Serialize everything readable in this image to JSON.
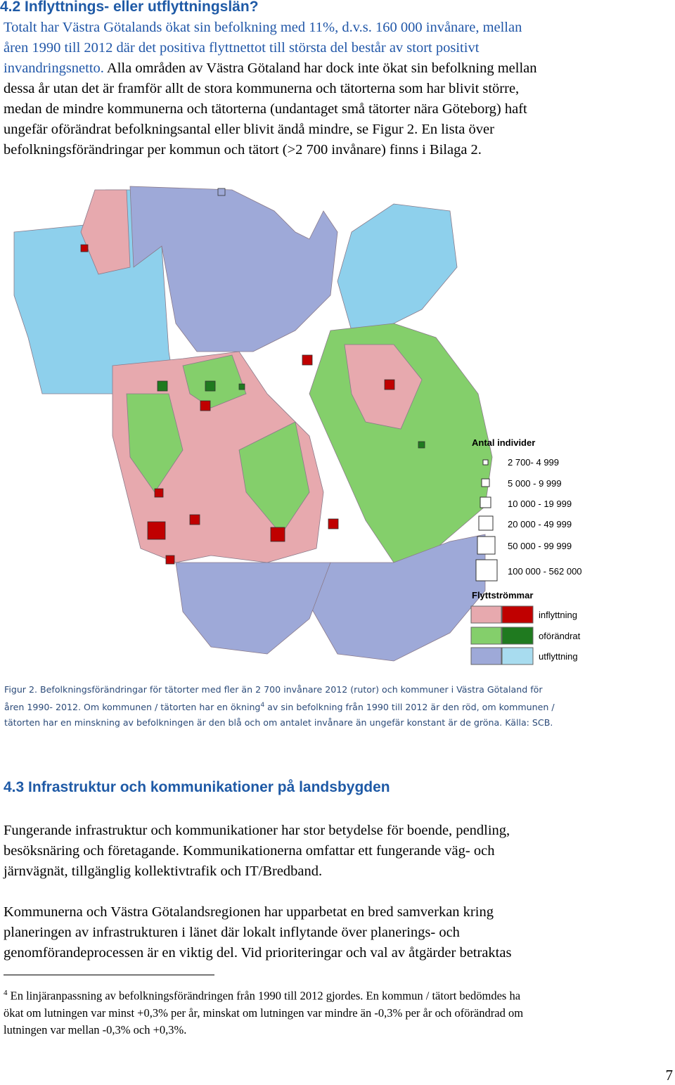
{
  "section_1": {
    "heading": "4.2 Inflyttnings- eller utflyttningslän?",
    "paragraph_lines": [
      "Totalt har Västra Götalands ökat sin befolkning med 11%, d.v.s. 160 000 invånare, mellan",
      "åren 1990 till 2012 där det positiva flyttnettot till största del består av stort positivt",
      "invandringsnetto.",
      "Alla områden av Västra Götaland har dock inte ökat sin befolkning mellan",
      "dessa år utan det är framför allt de stora kommunerna och tätorterna som har blivit större,",
      "medan de mindre kommunerna och tätorterna (undantaget små tätorter nära Göteborg) haft",
      "ungefär oförändrat befolkningsantal eller blivit ändå mindre, se Figur 2. En lista över",
      "befolkningsförändringar per kommun och tätort (>2 700 invånare) finns i Bilaga 2."
    ]
  },
  "figure": {
    "legend_size_title": "Antal individer",
    "legend_sizes": [
      "2 700- 4 999",
      "5 000 - 9 999",
      "10 000 - 19 999",
      "20 000 - 49 999",
      "50 000 - 99 999",
      "100 000 - 562 000"
    ],
    "legend_flow_title": "Flyttströmmar",
    "legend_flows": [
      "inflyttning",
      "oförändrat",
      "utflyttning"
    ],
    "caption": {
      "line_1": "Figur 2. Befolkningsförändringar för tätorter med fler än 2 700 invånare 2012 (rutor) och kommuner i Västra Götaland för",
      "line_2_before": "åren 1990- 2012. Om kommunen / tätorten har en ökning",
      "footnote_ref": "4",
      "line_2_after": " av sin befolkning från 1990 till 2012 är den röd, om kommunen /",
      "line_3": "tätorten har en minskning av befolkningen är den blå och om antalet invånare än ungefär konstant är de gröna. Källa: SCB."
    }
  },
  "section_2": {
    "heading": "4.3 Infrastruktur och kommunikationer på landsbygden",
    "paragraph_1_lines": [
      "Fungerande infrastruktur och kommunikationer har stor betydelse för boende, pendling,",
      "besöksnäring och företagande. Kommunikationerna omfattar ett fungerande väg- och",
      "järnvägnät, tillgänglig kollektivtrafik och IT/Bredband."
    ],
    "paragraph_2_lines": [
      "Kommunerna och Västra Götalandsregionen har upparbetat en bred samverkan kring",
      "planeringen av infrastrukturen i länet där lokalt inflytande över planerings- och",
      "genomförandeprocessen är en viktig del. Vid prioriteringar och val av åtgärder betraktas"
    ]
  },
  "footnote": {
    "number": "4",
    "lines": [
      " En linjäranpassning av befolkningsförändringen från 1990 till 2012 gjordes. En kommun / tätort bedömdes ha",
      "ökat om lutningen var minst +0,3% per år, minskat om lutningen var mindre än -0,3% per år och oförändrad om",
      "lutningen var mellan -0,3% och +0,3%."
    ]
  },
  "page_number": "7"
}
